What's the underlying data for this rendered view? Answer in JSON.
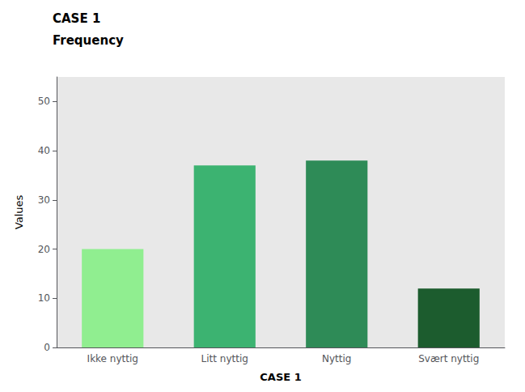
{
  "chart_data": {
    "type": "bar",
    "title": "CASE 1",
    "subtitle": "Frequency",
    "categories": [
      "Ikke nyttig",
      "Litt nyttig",
      "Nyttig",
      "Svært nyttig"
    ],
    "values": [
      20,
      37,
      38,
      12
    ],
    "colors": [
      "#90EE90",
      "#3CB371",
      "#2E8B57",
      "#1C5C2E"
    ],
    "xlabel": "CASE 1",
    "ylabel": "Values",
    "ylim": [
      0,
      55
    ],
    "yticks": [
      0,
      10,
      20,
      30,
      40,
      50
    ],
    "grid": false
  }
}
